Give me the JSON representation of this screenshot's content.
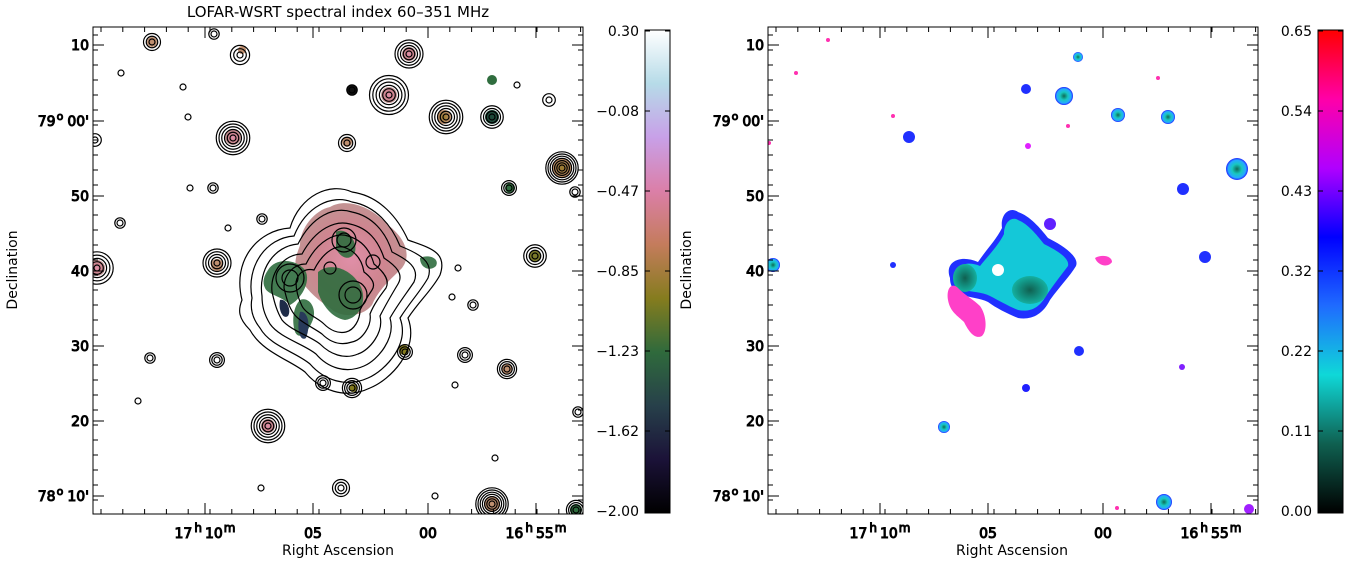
{
  "chart_data": [
    {
      "type": "heatmap",
      "panel": "left",
      "title": "LOFAR-WSRT spectral index 60–351 MHz",
      "xlabel": "Right Ascension",
      "ylabel": "Declination",
      "x_ticks": [
        {
          "major": "17",
          "sup": "h",
          "minor": "10",
          "sup2": "m"
        },
        {
          "major": "05",
          "sup": "",
          "minor": "",
          "sup2": ""
        },
        {
          "major": "00",
          "sup": "",
          "minor": "",
          "sup2": ""
        },
        {
          "major": "16",
          "sup": "h",
          "minor": "55",
          "sup2": "m"
        }
      ],
      "y_ticks": [
        {
          "major": "10",
          "sup": "",
          "minor": ""
        },
        {
          "major": "79",
          "sup": "o",
          "minor": "00'"
        },
        {
          "major": "50",
          "sup": "",
          "minor": ""
        },
        {
          "major": "40",
          "sup": "",
          "minor": ""
        },
        {
          "major": "30",
          "sup": "",
          "minor": ""
        },
        {
          "major": "20",
          "sup": "",
          "minor": ""
        },
        {
          "major": "78",
          "sup": "o",
          "minor": "10'"
        }
      ],
      "colorbar": {
        "range": [
          -2.0,
          0.3
        ],
        "tick_labels": [
          "0.30",
          "−0.08",
          "−0.47",
          "−0.85",
          "−1.23",
          "−1.62",
          "−2.00"
        ],
        "stops": [
          "#000000",
          "#1b1238",
          "#27404a",
          "#2f6a3c",
          "#857c1e",
          "#c47c5c",
          "#db7fa8",
          "#c8a0e8",
          "#b6dbe8",
          "#ffffff"
        ]
      },
      "contours": true
    },
    {
      "type": "heatmap",
      "panel": "right",
      "title": "",
      "xlabel": "Right Ascension",
      "ylabel": "Declination",
      "x_ticks": [
        {
          "major": "17",
          "sup": "h",
          "minor": "10",
          "sup2": "m"
        },
        {
          "major": "05",
          "sup": "",
          "minor": "",
          "sup2": ""
        },
        {
          "major": "00",
          "sup": "",
          "minor": "",
          "sup2": ""
        },
        {
          "major": "16",
          "sup": "h",
          "minor": "55",
          "sup2": "m"
        }
      ],
      "y_ticks": [
        {
          "major": "10",
          "sup": "",
          "minor": ""
        },
        {
          "major": "79",
          "sup": "o",
          "minor": "00'"
        },
        {
          "major": "50",
          "sup": "",
          "minor": ""
        },
        {
          "major": "40",
          "sup": "",
          "minor": ""
        },
        {
          "major": "30",
          "sup": "",
          "minor": ""
        },
        {
          "major": "20",
          "sup": "",
          "minor": ""
        },
        {
          "major": "78",
          "sup": "o",
          "minor": "10'"
        }
      ],
      "colorbar": {
        "range": [
          0.0,
          0.65
        ],
        "tick_labels": [
          "0.65",
          "0.54",
          "0.43",
          "0.32",
          "0.22",
          "0.11",
          "0.00"
        ],
        "stops": [
          "#000000",
          "#0f6050",
          "#0fd8d8",
          "#1f6bff",
          "#0000ff",
          "#b000ff",
          "#ff00a8",
          "#ff0000"
        ]
      },
      "contours": false
    }
  ]
}
